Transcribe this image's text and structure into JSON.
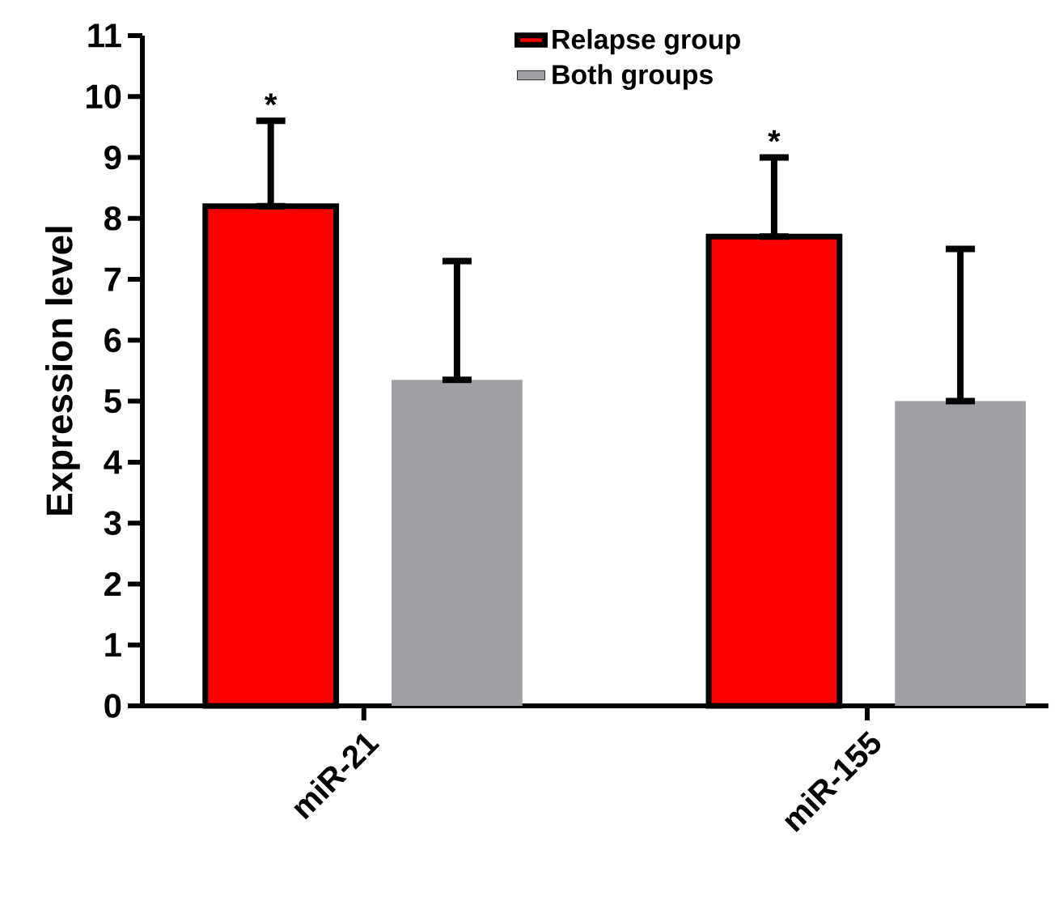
{
  "chart_data": {
    "type": "bar",
    "ylabel": "Expression level",
    "categories": [
      "miR-21",
      "miR-155"
    ],
    "series": [
      {
        "name": "Relapse group",
        "color": "#ff0000",
        "values": [
          8.2,
          7.7
        ],
        "errors": [
          [
            8.2,
            9.6
          ],
          [
            7.7,
            9.0
          ]
        ]
      },
      {
        "name": "Both groups",
        "color": "#a0a0a4",
        "values": [
          5.35,
          5.0
        ],
        "errors": [
          [
            5.35,
            7.3
          ],
          [
            5.0,
            7.5
          ]
        ]
      }
    ],
    "ylim": [
      0,
      11
    ],
    "yticks": [
      0,
      1,
      2,
      3,
      4,
      5,
      6,
      7,
      8,
      9,
      10,
      11
    ],
    "legend": "top",
    "annotations": [
      "*",
      "*"
    ]
  }
}
